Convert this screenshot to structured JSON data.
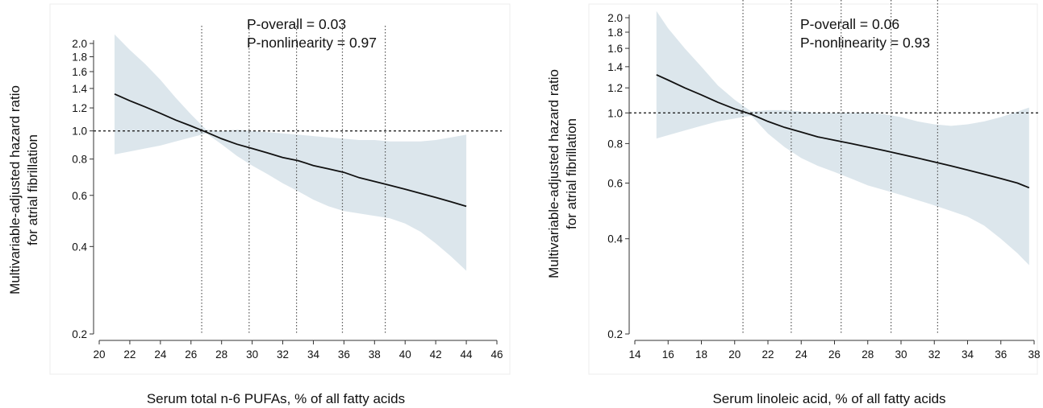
{
  "chart_data": [
    {
      "type": "line",
      "title": "",
      "xlabel": "Serum total n-6 PUFAs, % of all fatty acids",
      "ylabel_lines": [
        "Multivariable-adjusted hazard ratio",
        "for atrial fibrillation"
      ],
      "annotations": [
        "P-overall = 0.03",
        "P-nonlinearity = 0.97"
      ],
      "y_scale": "log",
      "xlim": [
        20,
        46
      ],
      "ylim": [
        0.2,
        2.0
      ],
      "xticks": [
        20,
        22,
        24,
        26,
        28,
        30,
        32,
        34,
        36,
        38,
        40,
        42,
        44,
        46
      ],
      "yticks": [
        0.2,
        0.4,
        0.6,
        0.8,
        1.0,
        1.2,
        1.4,
        1.6,
        1.8,
        2.0
      ],
      "ytick_labels": [
        "0.2",
        "0.4",
        "0.6",
        "0.8",
        "1.0",
        "1.2",
        "1.4",
        "1.6",
        "1.8",
        "2.0"
      ],
      "reference_line_y": 1.0,
      "vlines_x": [
        26.7,
        29.8,
        32.9,
        35.9,
        38.7
      ],
      "series": [
        {
          "x": [
            21,
            22,
            23,
            24,
            25,
            26,
            27,
            28,
            29,
            30,
            31,
            32,
            33,
            34,
            35,
            36,
            37,
            38,
            39,
            40,
            41,
            42,
            43,
            44
          ],
          "hr": [
            1.34,
            1.27,
            1.21,
            1.15,
            1.09,
            1.04,
            0.99,
            0.94,
            0.9,
            0.87,
            0.84,
            0.81,
            0.79,
            0.76,
            0.74,
            0.72,
            0.69,
            0.67,
            0.65,
            0.63,
            0.61,
            0.59,
            0.57,
            0.55
          ],
          "ci_low": [
            0.83,
            0.85,
            0.87,
            0.89,
            0.92,
            0.95,
            0.98,
            0.9,
            0.82,
            0.76,
            0.71,
            0.66,
            0.62,
            0.58,
            0.55,
            0.53,
            0.52,
            0.51,
            0.5,
            0.48,
            0.45,
            0.41,
            0.37,
            0.33
          ],
          "ci_high": [
            2.15,
            1.9,
            1.7,
            1.5,
            1.3,
            1.14,
            1.01,
            1.0,
            1.01,
            1.0,
            0.99,
            0.98,
            0.97,
            0.96,
            0.95,
            0.94,
            0.93,
            0.93,
            0.92,
            0.92,
            0.92,
            0.93,
            0.95,
            0.97
          ]
        }
      ]
    },
    {
      "type": "line",
      "title": "",
      "xlabel": "Serum linoleic acid, % of all fatty acids",
      "ylabel_lines": [
        "Multivariable-adjusted hazard ratio",
        "for atrial fibrillation"
      ],
      "annotations": [
        "P-overall = 0.06",
        "P-nonlinearity = 0.93"
      ],
      "y_scale": "log",
      "xlim": [
        14,
        38
      ],
      "ylim": [
        0.2,
        2.0
      ],
      "xticks": [
        14,
        16,
        18,
        20,
        22,
        24,
        26,
        28,
        30,
        32,
        34,
        36,
        38
      ],
      "yticks": [
        0.2,
        0.4,
        0.6,
        0.8,
        1.0,
        1.2,
        1.4,
        1.6,
        1.8,
        2.0
      ],
      "ytick_labels": [
        "0.2",
        "0.4",
        "0.6",
        "0.8",
        "1.0",
        "1.2",
        "1.4",
        "1.6",
        "1.8",
        "2.0"
      ],
      "reference_line_y": 1.0,
      "vlines_x": [
        20.5,
        23.4,
        26.4,
        29.4,
        32.2
      ],
      "series": [
        {
          "x": [
            15.3,
            16,
            17,
            18,
            19,
            20,
            21,
            22,
            23,
            24,
            25,
            26,
            27,
            28,
            29,
            30,
            31,
            32,
            33,
            34,
            35,
            36,
            37,
            37.7
          ],
          "hr": [
            1.32,
            1.27,
            1.2,
            1.14,
            1.08,
            1.03,
            0.99,
            0.94,
            0.9,
            0.87,
            0.84,
            0.82,
            0.8,
            0.78,
            0.76,
            0.74,
            0.72,
            0.7,
            0.68,
            0.66,
            0.64,
            0.62,
            0.6,
            0.58
          ],
          "ci_low": [
            0.83,
            0.85,
            0.88,
            0.91,
            0.94,
            0.96,
            0.98,
            0.86,
            0.78,
            0.72,
            0.68,
            0.65,
            0.62,
            0.59,
            0.57,
            0.55,
            0.53,
            0.51,
            0.49,
            0.47,
            0.44,
            0.4,
            0.36,
            0.33
          ],
          "ci_high": [
            2.1,
            1.85,
            1.6,
            1.4,
            1.22,
            1.1,
            1.01,
            1.02,
            1.02,
            1.01,
            1.0,
            1.0,
            1.0,
            1.0,
            0.99,
            0.97,
            0.94,
            0.92,
            0.91,
            0.92,
            0.94,
            0.97,
            1.01,
            1.04
          ]
        }
      ]
    }
  ]
}
